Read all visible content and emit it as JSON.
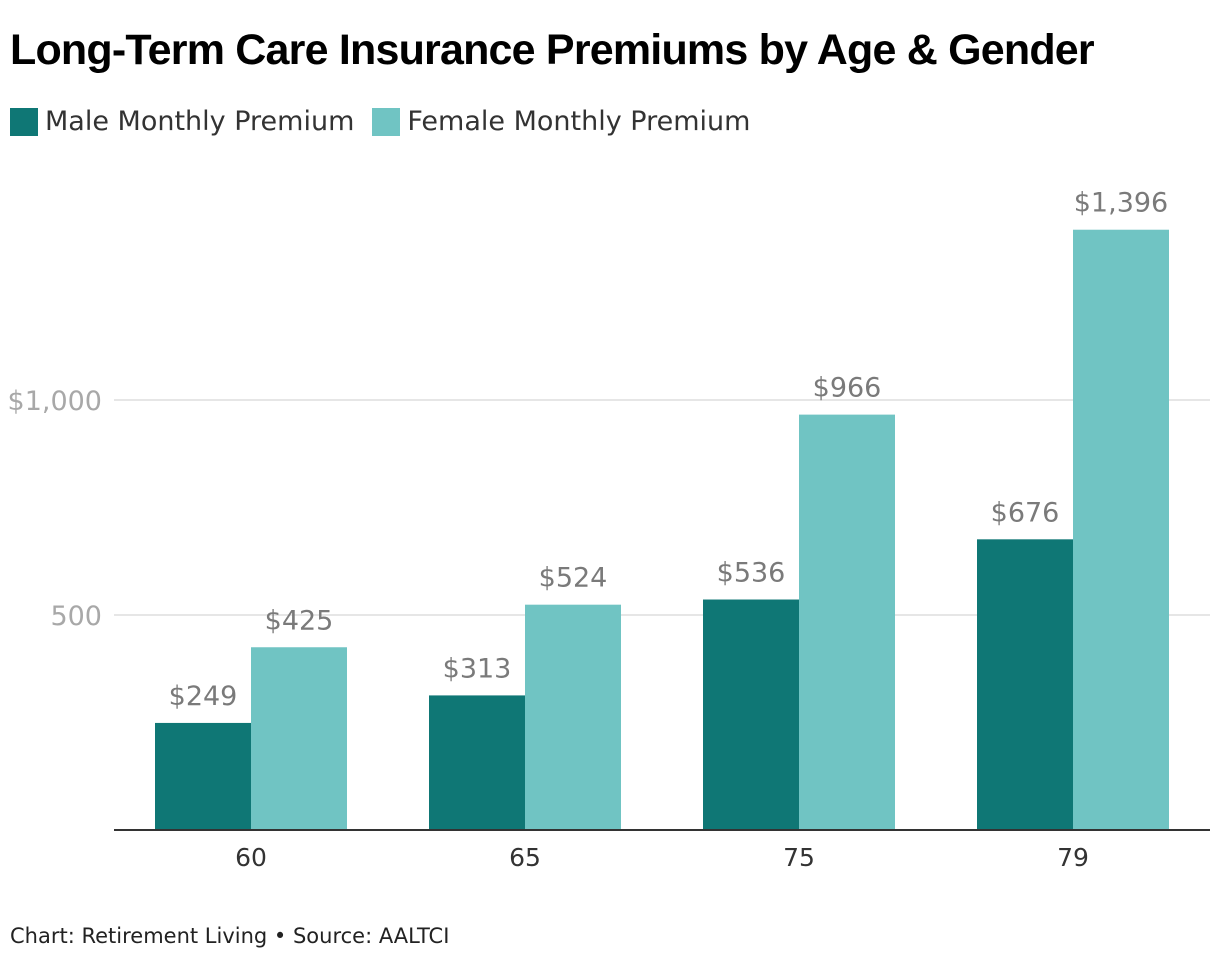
{
  "chart_data": {
    "type": "bar",
    "title": "Long-Term Care Insurance Premiums by Age & Gender",
    "categories": [
      "60",
      "65",
      "75",
      "79"
    ],
    "series": [
      {
        "name": "Male Monthly Premium",
        "color": "#0f7775",
        "values": [
          249,
          313,
          536,
          676
        ],
        "labels": [
          "$249",
          "$313",
          "$536",
          "$676"
        ]
      },
      {
        "name": "Female Monthly Premium",
        "color": "#70c4c3",
        "values": [
          425,
          524,
          966,
          1396
        ],
        "labels": [
          "$425",
          "$524",
          "$966",
          "$1,396"
        ]
      }
    ],
    "y_ticks": [
      {
        "value": 500,
        "label": "500"
      },
      {
        "value": 1000,
        "label": "$1,000"
      }
    ],
    "ylim": [
      0,
      1500
    ],
    "grid": true,
    "legend_position": "top-left",
    "xlabel": "",
    "ylabel": ""
  },
  "footer": "Chart: Retirement Living • Source: AALTCI"
}
